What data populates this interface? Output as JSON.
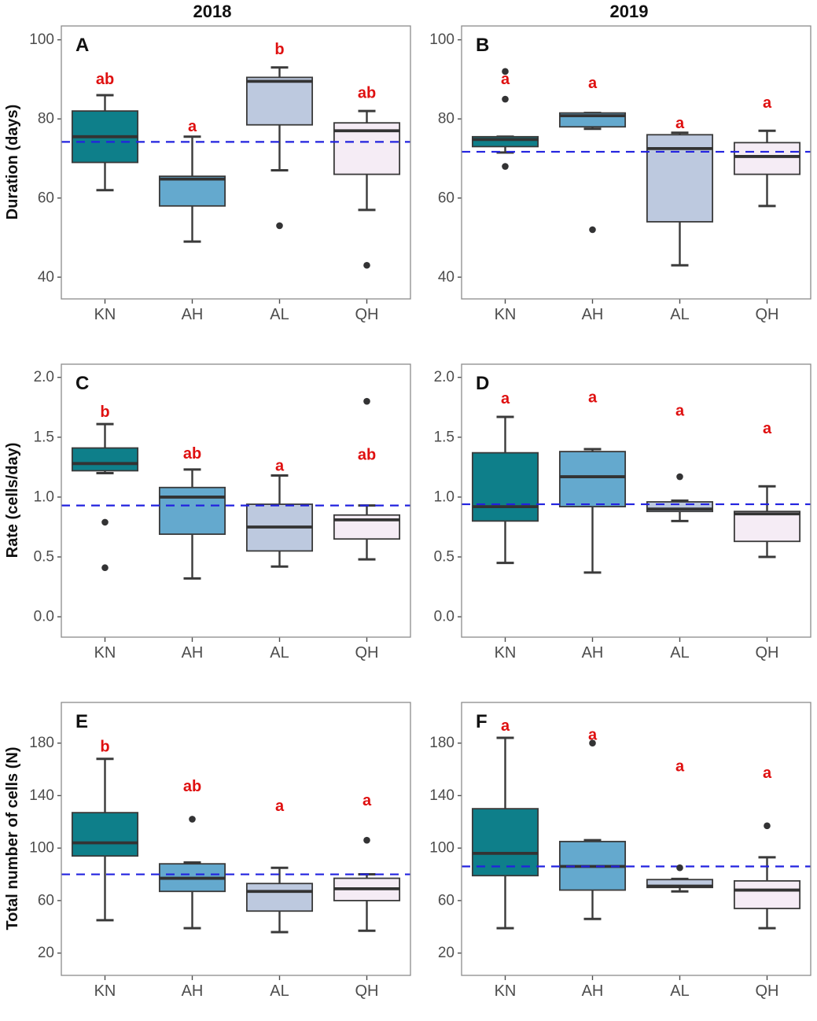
{
  "figure": {
    "columns": [
      "2018",
      "2019"
    ],
    "row_labels": [
      "Duration (days)",
      "Rate (cells/day)",
      "Total number of cells (N)"
    ]
  },
  "colors": {
    "group_fills": {
      "KN": "#0E7F8A",
      "AH": "#64A9CE",
      "AL": "#BDC9DF",
      "QH": "#F5ECF5"
    },
    "box_stroke": "#3A3A3A",
    "median_stroke": "#333333",
    "outlier_fill": "#333334",
    "ref_line": "#2222DF",
    "sig_letter": "#DF1010",
    "tick_text": "#4D4D4D",
    "panel_border": "#8C8C8C",
    "panel_letter": "#111111",
    "background": "#FFFFFF"
  },
  "chart_data": [
    {
      "type": "boxplot",
      "panel_letter": "A",
      "column_title": "2018",
      "ylabel": "Duration (days)",
      "ylim": [
        34.5,
        103.5
      ],
      "yticks": [
        40,
        60,
        80,
        100
      ],
      "ytick_format": "int",
      "ref_line": 74.2,
      "categories": [
        "KN",
        "AH",
        "AL",
        "QH"
      ],
      "boxes": [
        {
          "group": "KN",
          "sig": "ab",
          "sig_y": 90,
          "whisker_low": 62,
          "q1": 69,
          "median": 75.5,
          "q3": 82,
          "whisker_high": 86,
          "outliers": []
        },
        {
          "group": "AH",
          "sig": "a",
          "sig_y": 78,
          "whisker_low": 49,
          "q1": 58,
          "median": 64.8,
          "q3": 65.5,
          "whisker_high": 75.5,
          "outliers": []
        },
        {
          "group": "AL",
          "sig": "b",
          "sig_y": 97.5,
          "whisker_low": 67,
          "q1": 78.5,
          "median": 89.5,
          "q3": 90.5,
          "whisker_high": 93,
          "outliers": [
            53
          ]
        },
        {
          "group": "QH",
          "sig": "ab",
          "sig_y": 86.5,
          "whisker_low": 57,
          "q1": 66,
          "median": 77,
          "q3": 79,
          "whisker_high": 82,
          "outliers": [
            43
          ]
        }
      ]
    },
    {
      "type": "boxplot",
      "panel_letter": "B",
      "column_title": "2019",
      "ylabel": "Duration (days)",
      "ylim": [
        34.5,
        103.5
      ],
      "yticks": [
        40,
        60,
        80,
        100
      ],
      "ytick_format": "int",
      "ref_line": 71.7,
      "categories": [
        "KN",
        "AH",
        "AL",
        "QH"
      ],
      "boxes": [
        {
          "group": "KN",
          "sig": "a",
          "sig_y": 90,
          "whisker_low": 71.5,
          "q1": 73,
          "median": 74.8,
          "q3": 75.5,
          "whisker_high": 75.5,
          "outliers": [
            92,
            85,
            68
          ]
        },
        {
          "group": "AH",
          "sig": "a",
          "sig_y": 89,
          "whisker_low": 77.5,
          "q1": 78,
          "median": 80.8,
          "q3": 81.5,
          "whisker_high": 81.5,
          "outliers": [
            52
          ]
        },
        {
          "group": "AL",
          "sig": "a",
          "sig_y": 78.8,
          "whisker_low": 43,
          "q1": 54,
          "median": 72.5,
          "q3": 76,
          "whisker_high": 76.5,
          "outliers": []
        },
        {
          "group": "QH",
          "sig": "a",
          "sig_y": 84,
          "whisker_low": 58,
          "q1": 66,
          "median": 70.5,
          "q3": 74,
          "whisker_high": 77,
          "outliers": []
        }
      ]
    },
    {
      "type": "boxplot",
      "panel_letter": "C",
      "column_title": "2018",
      "ylabel": "Rate (cells/day)",
      "ylim": [
        -0.17,
        2.11
      ],
      "yticks": [
        0.0,
        0.5,
        1.0,
        1.5,
        2.0
      ],
      "ytick_format": "one_decimal",
      "ref_line": 0.93,
      "categories": [
        "KN",
        "AH",
        "AL",
        "QH"
      ],
      "boxes": [
        {
          "group": "KN",
          "sig": "b",
          "sig_y": 1.71,
          "whisker_low": 1.2,
          "q1": 1.22,
          "median": 1.28,
          "q3": 1.41,
          "whisker_high": 1.61,
          "outliers": [
            0.79,
            0.41
          ]
        },
        {
          "group": "AH",
          "sig": "ab",
          "sig_y": 1.36,
          "whisker_low": 0.32,
          "q1": 0.69,
          "median": 1.0,
          "q3": 1.08,
          "whisker_high": 1.23,
          "outliers": []
        },
        {
          "group": "AL",
          "sig": "a",
          "sig_y": 1.26,
          "whisker_low": 0.42,
          "q1": 0.55,
          "median": 0.75,
          "q3": 0.94,
          "whisker_high": 1.18,
          "outliers": []
        },
        {
          "group": "QH",
          "sig": "ab",
          "sig_y": 1.35,
          "whisker_low": 0.48,
          "q1": 0.65,
          "median": 0.81,
          "q3": 0.85,
          "whisker_high": 0.93,
          "outliers": [
            1.8
          ]
        }
      ]
    },
    {
      "type": "boxplot",
      "panel_letter": "D",
      "column_title": "2019",
      "ylabel": "Rate (cells/day)",
      "ylim": [
        -0.17,
        2.11
      ],
      "yticks": [
        0.0,
        0.5,
        1.0,
        1.5,
        2.0
      ],
      "ytick_format": "one_decimal",
      "ref_line": 0.94,
      "categories": [
        "KN",
        "AH",
        "AL",
        "QH"
      ],
      "boxes": [
        {
          "group": "KN",
          "sig": "a",
          "sig_y": 1.82,
          "whisker_low": 0.45,
          "q1": 0.8,
          "median": 0.92,
          "q3": 1.37,
          "whisker_high": 1.67,
          "outliers": []
        },
        {
          "group": "AH",
          "sig": "a",
          "sig_y": 1.83,
          "whisker_low": 0.37,
          "q1": 0.92,
          "median": 1.17,
          "q3": 1.38,
          "whisker_high": 1.4,
          "outliers": []
        },
        {
          "group": "AL",
          "sig": "a",
          "sig_y": 1.72,
          "whisker_low": 0.8,
          "q1": 0.88,
          "median": 0.9,
          "q3": 0.96,
          "whisker_high": 0.97,
          "outliers": [
            1.17
          ]
        },
        {
          "group": "QH",
          "sig": "a",
          "sig_y": 1.57,
          "whisker_low": 0.5,
          "q1": 0.63,
          "median": 0.86,
          "q3": 0.88,
          "whisker_high": 1.09,
          "outliers": []
        }
      ]
    },
    {
      "type": "boxplot",
      "panel_letter": "E",
      "column_title": "2018",
      "ylabel": "Total number of cells (N)",
      "ylim": [
        3,
        211
      ],
      "yticks": [
        20,
        60,
        100,
        140,
        180
      ],
      "ytick_format": "int",
      "ref_line": 80,
      "categories": [
        "KN",
        "AH",
        "AL",
        "QH"
      ],
      "boxes": [
        {
          "group": "KN",
          "sig": "b",
          "sig_y": 177,
          "whisker_low": 45,
          "q1": 94,
          "median": 104,
          "q3": 127,
          "whisker_high": 168,
          "outliers": []
        },
        {
          "group": "AH",
          "sig": "ab",
          "sig_y": 147,
          "whisker_low": 39,
          "q1": 67,
          "median": 77,
          "q3": 88,
          "whisker_high": 89,
          "outliers": [
            122
          ]
        },
        {
          "group": "AL",
          "sig": "a",
          "sig_y": 132,
          "whisker_low": 36,
          "q1": 52,
          "median": 67,
          "q3": 73,
          "whisker_high": 85,
          "outliers": []
        },
        {
          "group": "QH",
          "sig": "a",
          "sig_y": 136,
          "whisker_low": 37,
          "q1": 60,
          "median": 69,
          "q3": 77,
          "whisker_high": 80,
          "outliers": [
            106
          ]
        }
      ]
    },
    {
      "type": "boxplot",
      "panel_letter": "F",
      "column_title": "2019",
      "ylabel": "Total number of cells (N)",
      "ylim": [
        3,
        211
      ],
      "yticks": [
        20,
        60,
        100,
        140,
        180
      ],
      "ytick_format": "int",
      "ref_line": 86,
      "categories": [
        "KN",
        "AH",
        "AL",
        "QH"
      ],
      "boxes": [
        {
          "group": "KN",
          "sig": "a",
          "sig_y": 193,
          "whisker_low": 39,
          "q1": 79,
          "median": 96,
          "q3": 130,
          "whisker_high": 184,
          "outliers": []
        },
        {
          "group": "AH",
          "sig": "a",
          "sig_y": 186,
          "whisker_low": 46,
          "q1": 68,
          "median": 86,
          "q3": 105,
          "whisker_high": 106,
          "outliers": [
            180
          ]
        },
        {
          "group": "AL",
          "sig": "a",
          "sig_y": 162,
          "whisker_low": 67,
          "q1": 70,
          "median": 71,
          "q3": 76,
          "whisker_high": 76.5,
          "outliers": [
            85
          ]
        },
        {
          "group": "QH",
          "sig": "a",
          "sig_y": 157,
          "whisker_low": 39,
          "q1": 54,
          "median": 68,
          "q3": 75,
          "whisker_high": 93,
          "outliers": [
            117
          ]
        }
      ]
    }
  ]
}
